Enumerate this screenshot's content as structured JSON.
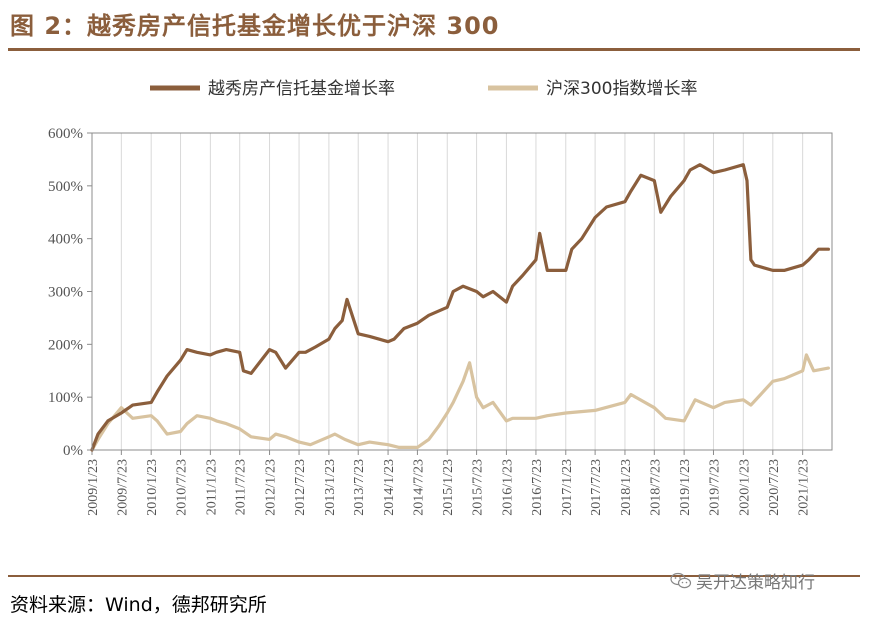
{
  "figure": {
    "title": "图 2：越秀房产信托基金增长优于沪深 300",
    "source": "资料来源：Wind，德邦研究所",
    "watermark": "吴开达策略知行"
  },
  "colors": {
    "series1": "#8b5e3c",
    "series2": "#d8c3a0",
    "axis": "#8c8c8c",
    "grid": "#d9d9d9",
    "title": "#8b5e3c"
  },
  "chart_data": {
    "type": "line",
    "title": "",
    "xlabel": "",
    "ylabel": "",
    "ylim": [
      0,
      600
    ],
    "y_ticks": [
      "0%",
      "100%",
      "200%",
      "300%",
      "400%",
      "500%",
      "600%"
    ],
    "x_ticks": [
      "2009/1/23",
      "2009/7/23",
      "2010/1/23",
      "2010/7/23",
      "2011/1/23",
      "2011/7/23",
      "2012/1/23",
      "2012/7/23",
      "2013/1/23",
      "2013/7/23",
      "2014/1/23",
      "2014/7/23",
      "2015/1/23",
      "2015/7/23",
      "2016/1/23",
      "2016/7/23",
      "2017/1/23",
      "2017/7/23",
      "2018/1/23",
      "2018/7/23",
      "2019/1/23",
      "2019/7/23",
      "2020/1/23",
      "2020/7/23",
      "2021/1/23"
    ],
    "grid": true,
    "legend_position": "top-center",
    "series": [
      {
        "name": "越秀房产信托基金增长率",
        "x": [
          "2009/1/23",
          "2009/3/1",
          "2009/5/1",
          "2009/7/23",
          "2009/10/1",
          "2010/1/23",
          "2010/3/1",
          "2010/5/1",
          "2010/7/23",
          "2010/9/1",
          "2010/11/1",
          "2011/1/23",
          "2011/3/1",
          "2011/5/1",
          "2011/7/23",
          "2011/8/15",
          "2011/10/1",
          "2012/1/23",
          "2012/3/1",
          "2012/5/1",
          "2012/7/23",
          "2012/9/1",
          "2012/11/1",
          "2013/1/23",
          "2013/3/1",
          "2013/4/15",
          "2013/5/15",
          "2013/7/23",
          "2013/10/1",
          "2014/1/23",
          "2014/3/1",
          "2014/5/1",
          "2014/7/23",
          "2014/10/1",
          "2015/1/23",
          "2015/3/1",
          "2015/5/1",
          "2015/7/23",
          "2015/9/1",
          "2015/11/1",
          "2016/1/23",
          "2016/3/1",
          "2016/5/1",
          "2016/7/23",
          "2016/8/15",
          "2016/10/1",
          "2017/1/23",
          "2017/3/1",
          "2017/5/1",
          "2017/7/23",
          "2017/10/1",
          "2018/1/23",
          "2018/3/1",
          "2018/5/1",
          "2018/7/23",
          "2018/9/1",
          "2018/11/1",
          "2019/1/23",
          "2019/3/1",
          "2019/5/1",
          "2019/7/23",
          "2019/10/1",
          "2020/1/23",
          "2020/2/15",
          "2020/3/10",
          "2020/4/1",
          "2020/7/23",
          "2020/10/1",
          "2021/1/23",
          "2021/3/1",
          "2021/5/1",
          "2021/7/1"
        ],
        "values": [
          0,
          30,
          55,
          70,
          85,
          90,
          110,
          140,
          170,
          190,
          185,
          180,
          185,
          190,
          185,
          150,
          145,
          190,
          185,
          155,
          185,
          185,
          195,
          210,
          230,
          245,
          285,
          220,
          215,
          205,
          210,
          230,
          240,
          255,
          270,
          300,
          310,
          300,
          290,
          300,
          280,
          310,
          330,
          360,
          410,
          340,
          340,
          380,
          400,
          440,
          460,
          470,
          490,
          520,
          510,
          450,
          480,
          510,
          530,
          540,
          525,
          530,
          540,
          510,
          360,
          350,
          340,
          340,
          350,
          360,
          380,
          380
        ]
      },
      {
        "name": "沪深300指数增长率",
        "x": [
          "2009/1/23",
          "2009/3/1",
          "2009/5/1",
          "2009/7/23",
          "2009/10/1",
          "2010/1/23",
          "2010/3/1",
          "2010/5/1",
          "2010/7/23",
          "2010/9/1",
          "2010/11/1",
          "2011/1/23",
          "2011/3/1",
          "2011/5/1",
          "2011/7/23",
          "2011/10/1",
          "2012/1/23",
          "2012/3/1",
          "2012/5/1",
          "2012/7/23",
          "2012/10/1",
          "2013/1/23",
          "2013/3/1",
          "2013/5/1",
          "2013/7/23",
          "2013/10/1",
          "2014/1/23",
          "2014/4/1",
          "2014/7/23",
          "2014/10/1",
          "2014/12/1",
          "2015/1/23",
          "2015/3/1",
          "2015/5/1",
          "2015/6/10",
          "2015/7/23",
          "2015/9/1",
          "2015/11/1",
          "2016/1/23",
          "2016/3/1",
          "2016/7/23",
          "2016/10/1",
          "2017/1/23",
          "2017/7/23",
          "2018/1/23",
          "2018/3/1",
          "2018/7/23",
          "2018/10/1",
          "2019/1/23",
          "2019/4/1",
          "2019/7/23",
          "2019/10/1",
          "2020/1/23",
          "2020/3/10",
          "2020/7/23",
          "2020/10/1",
          "2021/1/23",
          "2021/2/15",
          "2021/4/1",
          "2021/7/1"
        ],
        "values": [
          0,
          20,
          50,
          80,
          60,
          65,
          55,
          30,
          35,
          50,
          65,
          60,
          55,
          50,
          40,
          25,
          20,
          30,
          25,
          15,
          10,
          25,
          30,
          20,
          10,
          15,
          10,
          5,
          5,
          20,
          45,
          70,
          90,
          130,
          165,
          100,
          80,
          90,
          55,
          60,
          60,
          65,
          70,
          75,
          90,
          105,
          80,
          60,
          55,
          95,
          80,
          90,
          95,
          85,
          130,
          135,
          150,
          180,
          150,
          155
        ]
      }
    ]
  }
}
